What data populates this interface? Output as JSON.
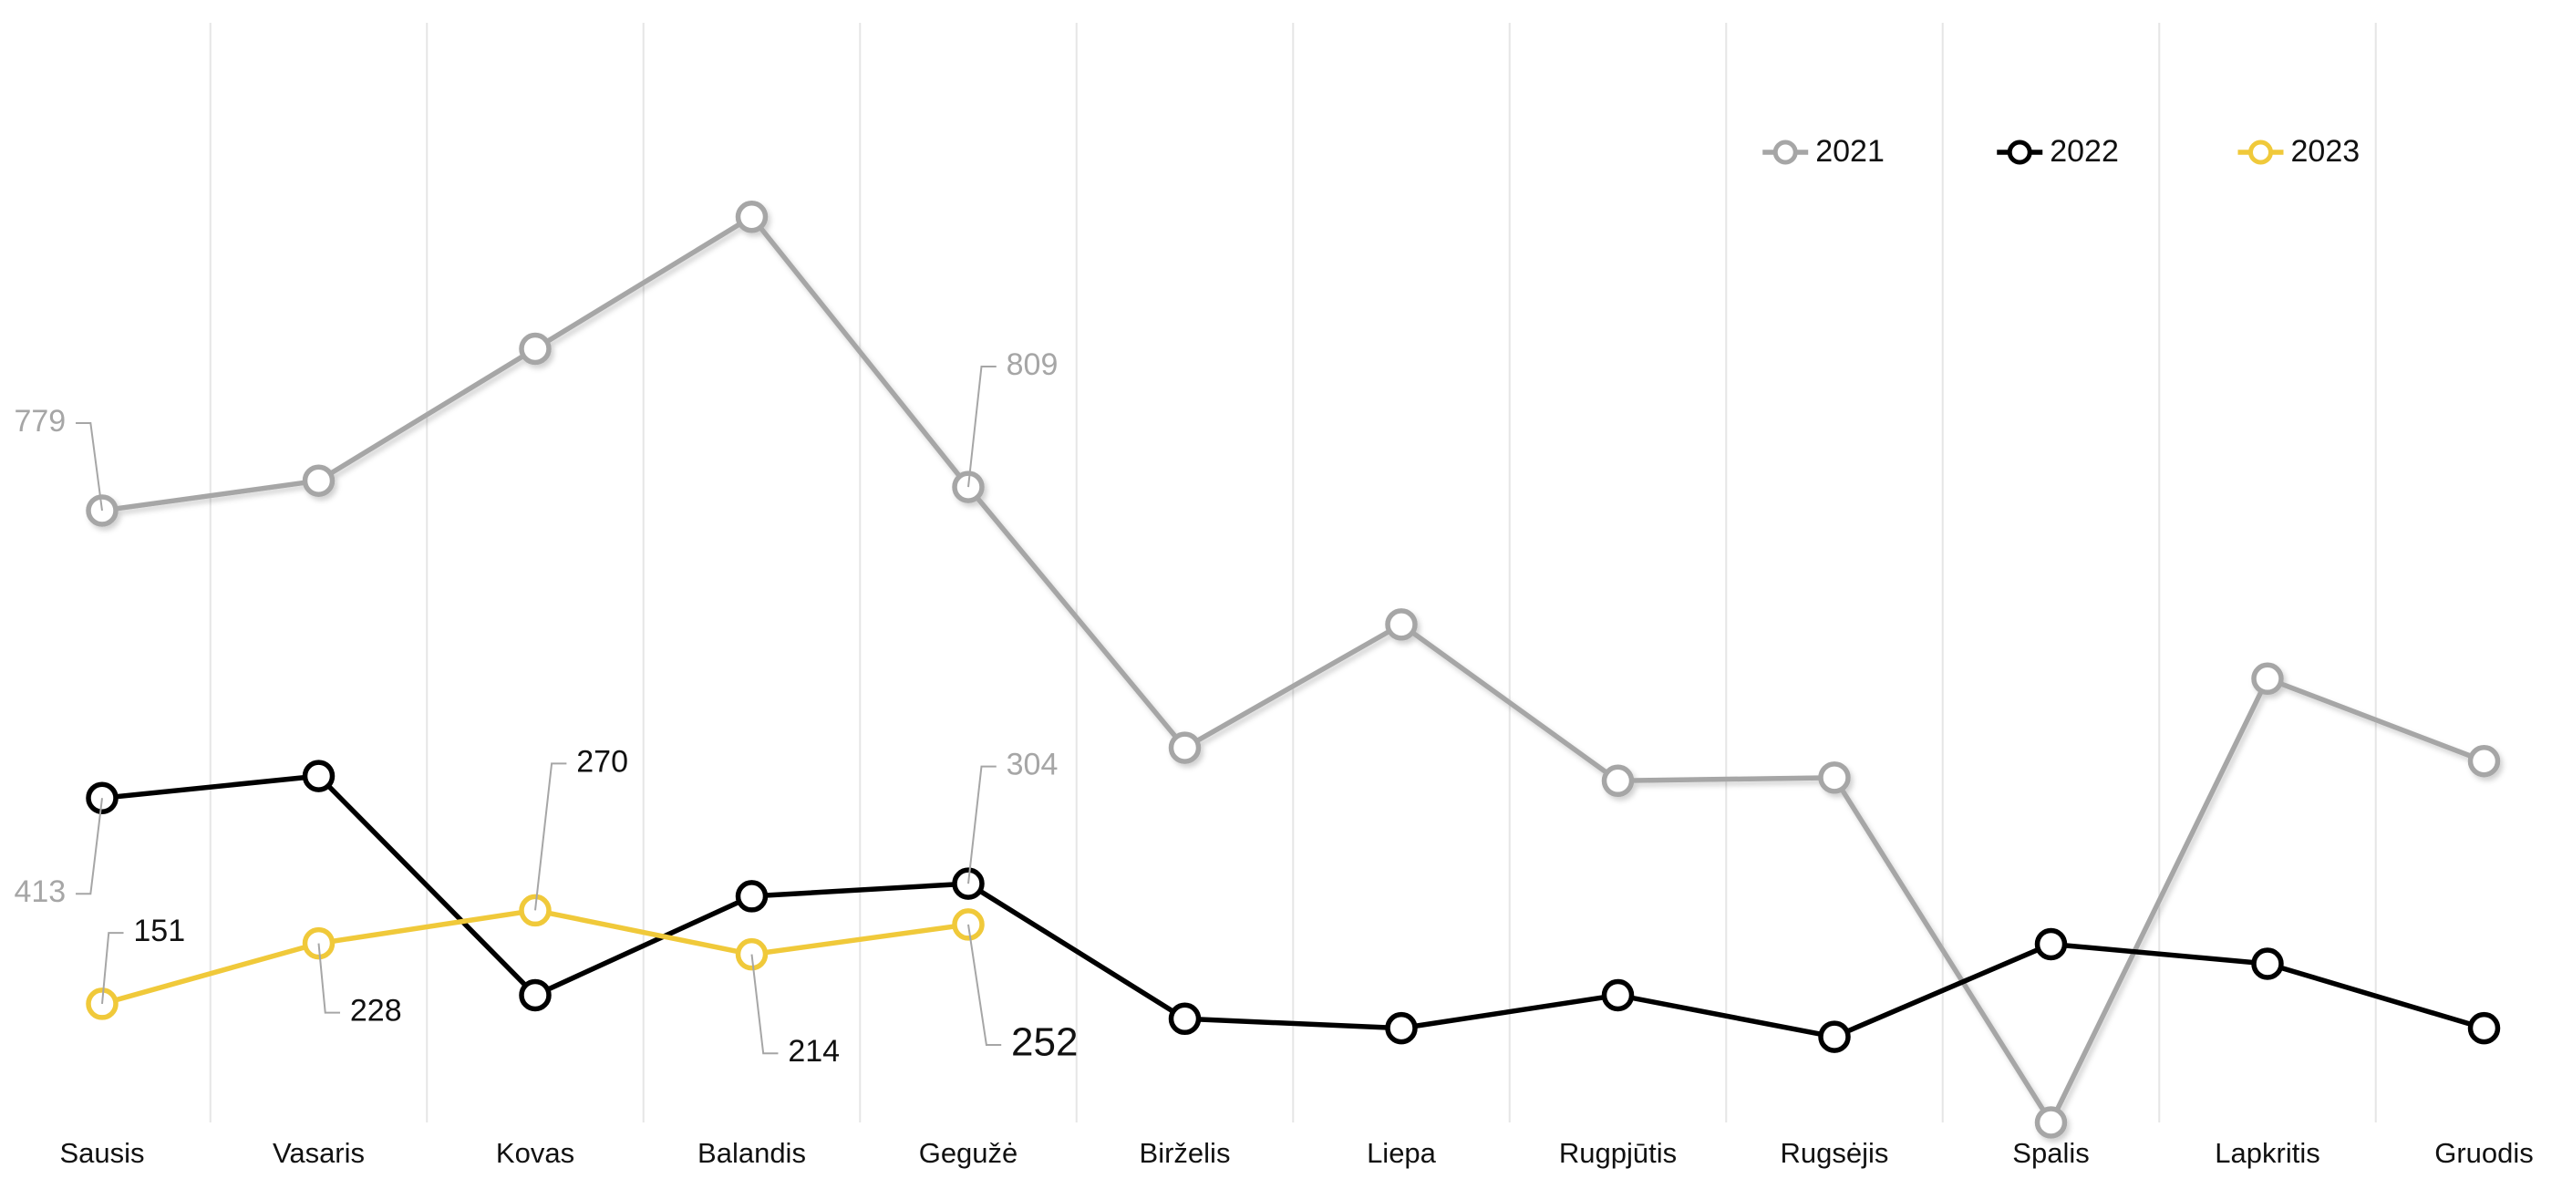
{
  "chart_data": {
    "type": "line",
    "categories": [
      "Sausis",
      "Vasaris",
      "Kovas",
      "Balandis",
      "Gegužė",
      "Birželis",
      "Liepa",
      "Rugpjūtis",
      "Rugsėjis",
      "Spalis",
      "Lapkritis",
      "Gruodis"
    ],
    "series": [
      {
        "name": "2021",
        "color": "#a6a6a6",
        "values": [
          779,
          817,
          985,
          1153,
          809,
          477,
          634,
          435,
          439,
          0,
          565,
          460
        ],
        "value_labels": [
          "779",
          null,
          null,
          null,
          "809",
          null,
          null,
          null,
          null,
          null,
          null,
          null
        ]
      },
      {
        "name": "2022",
        "color": "#000000",
        "values": [
          413,
          441,
          162,
          288,
          304,
          132,
          120,
          162,
          109,
          227,
          202,
          120
        ],
        "value_labels": [
          "413",
          null,
          null,
          null,
          "304",
          null,
          null,
          null,
          null,
          null,
          null,
          null
        ]
      },
      {
        "name": "2023",
        "color": "#f0c93a",
        "values": [
          151,
          228,
          270,
          214,
          252,
          null,
          null,
          null,
          null,
          null,
          null,
          null
        ],
        "value_labels": [
          "151",
          "228",
          "270",
          "214",
          "252",
          null,
          null,
          null,
          null,
          null,
          null,
          null
        ]
      }
    ],
    "ylim": [
      0,
      1400
    ],
    "grid": true,
    "legend": "upper right"
  }
}
